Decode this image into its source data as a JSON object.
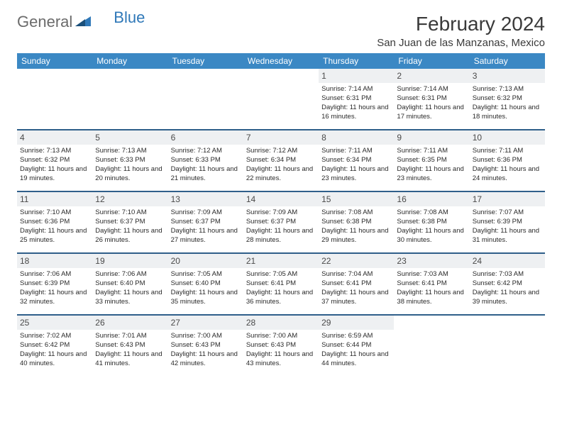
{
  "logo": {
    "text1": "General",
    "text2": "Blue"
  },
  "title": "February 2024",
  "location": "San Juan de las Manzanas, Mexico",
  "colors": {
    "header_bg": "#3b88c4",
    "header_text": "#ffffff",
    "daynum_bg": "#eef0f2",
    "week_border": "#2f5f8a",
    "logo_gray": "#6b6b6b",
    "logo_blue": "#2f78b8",
    "body_text": "#2a2a2a",
    "background": "#ffffff"
  },
  "typography": {
    "title_fontsize": 28,
    "location_fontsize": 15,
    "dayheader_fontsize": 12,
    "daynum_fontsize": 12,
    "cell_fontsize": 9.5
  },
  "day_headers": [
    "Sunday",
    "Monday",
    "Tuesday",
    "Wednesday",
    "Thursday",
    "Friday",
    "Saturday"
  ],
  "weeks": [
    [
      {
        "n": "",
        "sr": "",
        "ss": "",
        "dl": ""
      },
      {
        "n": "",
        "sr": "",
        "ss": "",
        "dl": ""
      },
      {
        "n": "",
        "sr": "",
        "ss": "",
        "dl": ""
      },
      {
        "n": "",
        "sr": "",
        "ss": "",
        "dl": ""
      },
      {
        "n": "1",
        "sr": "Sunrise: 7:14 AM",
        "ss": "Sunset: 6:31 PM",
        "dl": "Daylight: 11 hours and 16 minutes."
      },
      {
        "n": "2",
        "sr": "Sunrise: 7:14 AM",
        "ss": "Sunset: 6:31 PM",
        "dl": "Daylight: 11 hours and 17 minutes."
      },
      {
        "n": "3",
        "sr": "Sunrise: 7:13 AM",
        "ss": "Sunset: 6:32 PM",
        "dl": "Daylight: 11 hours and 18 minutes."
      }
    ],
    [
      {
        "n": "4",
        "sr": "Sunrise: 7:13 AM",
        "ss": "Sunset: 6:32 PM",
        "dl": "Daylight: 11 hours and 19 minutes."
      },
      {
        "n": "5",
        "sr": "Sunrise: 7:13 AM",
        "ss": "Sunset: 6:33 PM",
        "dl": "Daylight: 11 hours and 20 minutes."
      },
      {
        "n": "6",
        "sr": "Sunrise: 7:12 AM",
        "ss": "Sunset: 6:33 PM",
        "dl": "Daylight: 11 hours and 21 minutes."
      },
      {
        "n": "7",
        "sr": "Sunrise: 7:12 AM",
        "ss": "Sunset: 6:34 PM",
        "dl": "Daylight: 11 hours and 22 minutes."
      },
      {
        "n": "8",
        "sr": "Sunrise: 7:11 AM",
        "ss": "Sunset: 6:34 PM",
        "dl": "Daylight: 11 hours and 23 minutes."
      },
      {
        "n": "9",
        "sr": "Sunrise: 7:11 AM",
        "ss": "Sunset: 6:35 PM",
        "dl": "Daylight: 11 hours and 23 minutes."
      },
      {
        "n": "10",
        "sr": "Sunrise: 7:11 AM",
        "ss": "Sunset: 6:36 PM",
        "dl": "Daylight: 11 hours and 24 minutes."
      }
    ],
    [
      {
        "n": "11",
        "sr": "Sunrise: 7:10 AM",
        "ss": "Sunset: 6:36 PM",
        "dl": "Daylight: 11 hours and 25 minutes."
      },
      {
        "n": "12",
        "sr": "Sunrise: 7:10 AM",
        "ss": "Sunset: 6:37 PM",
        "dl": "Daylight: 11 hours and 26 minutes."
      },
      {
        "n": "13",
        "sr": "Sunrise: 7:09 AM",
        "ss": "Sunset: 6:37 PM",
        "dl": "Daylight: 11 hours and 27 minutes."
      },
      {
        "n": "14",
        "sr": "Sunrise: 7:09 AM",
        "ss": "Sunset: 6:37 PM",
        "dl": "Daylight: 11 hours and 28 minutes."
      },
      {
        "n": "15",
        "sr": "Sunrise: 7:08 AM",
        "ss": "Sunset: 6:38 PM",
        "dl": "Daylight: 11 hours and 29 minutes."
      },
      {
        "n": "16",
        "sr": "Sunrise: 7:08 AM",
        "ss": "Sunset: 6:38 PM",
        "dl": "Daylight: 11 hours and 30 minutes."
      },
      {
        "n": "17",
        "sr": "Sunrise: 7:07 AM",
        "ss": "Sunset: 6:39 PM",
        "dl": "Daylight: 11 hours and 31 minutes."
      }
    ],
    [
      {
        "n": "18",
        "sr": "Sunrise: 7:06 AM",
        "ss": "Sunset: 6:39 PM",
        "dl": "Daylight: 11 hours and 32 minutes."
      },
      {
        "n": "19",
        "sr": "Sunrise: 7:06 AM",
        "ss": "Sunset: 6:40 PM",
        "dl": "Daylight: 11 hours and 33 minutes."
      },
      {
        "n": "20",
        "sr": "Sunrise: 7:05 AM",
        "ss": "Sunset: 6:40 PM",
        "dl": "Daylight: 11 hours and 35 minutes."
      },
      {
        "n": "21",
        "sr": "Sunrise: 7:05 AM",
        "ss": "Sunset: 6:41 PM",
        "dl": "Daylight: 11 hours and 36 minutes."
      },
      {
        "n": "22",
        "sr": "Sunrise: 7:04 AM",
        "ss": "Sunset: 6:41 PM",
        "dl": "Daylight: 11 hours and 37 minutes."
      },
      {
        "n": "23",
        "sr": "Sunrise: 7:03 AM",
        "ss": "Sunset: 6:41 PM",
        "dl": "Daylight: 11 hours and 38 minutes."
      },
      {
        "n": "24",
        "sr": "Sunrise: 7:03 AM",
        "ss": "Sunset: 6:42 PM",
        "dl": "Daylight: 11 hours and 39 minutes."
      }
    ],
    [
      {
        "n": "25",
        "sr": "Sunrise: 7:02 AM",
        "ss": "Sunset: 6:42 PM",
        "dl": "Daylight: 11 hours and 40 minutes."
      },
      {
        "n": "26",
        "sr": "Sunrise: 7:01 AM",
        "ss": "Sunset: 6:43 PM",
        "dl": "Daylight: 11 hours and 41 minutes."
      },
      {
        "n": "27",
        "sr": "Sunrise: 7:00 AM",
        "ss": "Sunset: 6:43 PM",
        "dl": "Daylight: 11 hours and 42 minutes."
      },
      {
        "n": "28",
        "sr": "Sunrise: 7:00 AM",
        "ss": "Sunset: 6:43 PM",
        "dl": "Daylight: 11 hours and 43 minutes."
      },
      {
        "n": "29",
        "sr": "Sunrise: 6:59 AM",
        "ss": "Sunset: 6:44 PM",
        "dl": "Daylight: 11 hours and 44 minutes."
      },
      {
        "n": "",
        "sr": "",
        "ss": "",
        "dl": ""
      },
      {
        "n": "",
        "sr": "",
        "ss": "",
        "dl": ""
      }
    ]
  ]
}
